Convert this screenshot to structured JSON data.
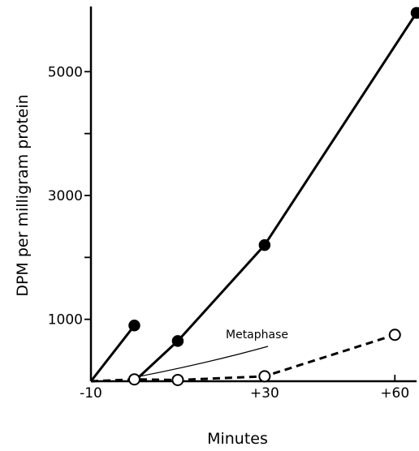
{
  "chart_data": {
    "type": "line",
    "title": "",
    "xlabel": "Minutes",
    "ylabel": "DPM per milligram protein",
    "xlim": [
      -10,
      65
    ],
    "ylim": [
      0,
      6000
    ],
    "x_ticks": [
      -10,
      30,
      60
    ],
    "x_tick_labels": [
      "-10",
      "+30",
      "+60"
    ],
    "y_ticks": [
      1000,
      2000,
      3000,
      4000,
      5000
    ],
    "y_tick_labels": [
      "1000",
      "",
      "3000",
      "",
      "5000"
    ],
    "grid": false,
    "series": [
      {
        "marker": "filled-circle",
        "line": "solid",
        "segments": [
          {
            "x": [
              -10,
              0
            ],
            "y": [
              0,
              900
            ]
          },
          {
            "x": [
              0,
              10,
              30,
              65
            ],
            "y": [
              0,
              650,
              2200,
              5950
            ]
          }
        ],
        "points": {
          "x": [
            0,
            10,
            30,
            65
          ],
          "y": [
            900,
            650,
            2200,
            5950
          ]
        }
      },
      {
        "marker": "open-circle",
        "line": "dashed",
        "segments": [
          {
            "x": [
              -10,
              0,
              10,
              30,
              60
            ],
            "y": [
              0,
              30,
              20,
              80,
              750
            ]
          }
        ],
        "points": {
          "x": [
            0,
            10,
            30,
            60
          ],
          "y": [
            30,
            20,
            80,
            750
          ]
        }
      }
    ],
    "annotations": [
      {
        "text": "Metaphase",
        "x": 0,
        "y": 30
      }
    ]
  }
}
